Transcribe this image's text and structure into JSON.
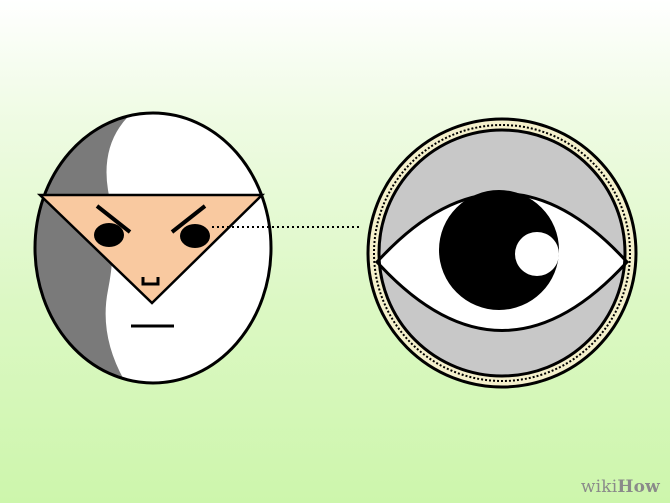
{
  "watermark": {
    "part1": "wiki",
    "part2": "How"
  },
  "colors": {
    "face_skin": "#f9c9a0",
    "hood_white": "#ffffff",
    "hood_shadow": "#7a7a7a",
    "outline": "#000000",
    "eye_ring": "#c8c8c8",
    "rim_accent": "#f4f0cc",
    "watermark": "#8a8a8a"
  },
  "icons": [
    "hooded-face",
    "eye-symbol",
    "dotted-connector"
  ]
}
